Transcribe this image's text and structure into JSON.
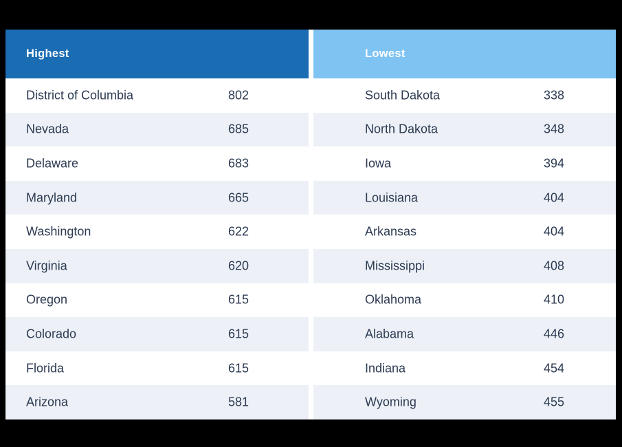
{
  "colors": {
    "canvas": "#000000",
    "table_background": "#FFFFFF",
    "header_highest": "#1A6CB3",
    "header_lowest": "#7FC3F3",
    "row_alternate": "#EDF1F7",
    "row_text": "#2C3A52",
    "header_text": "#FFFFFF"
  },
  "panels": [
    {
      "header": "Highest",
      "rows": [
        {
          "state": "District of Columbia",
          "value": "802"
        },
        {
          "state": "Nevada",
          "value": "685"
        },
        {
          "state": "Delaware",
          "value": "683"
        },
        {
          "state": "Maryland",
          "value": "665"
        },
        {
          "state": "Washington",
          "value": "622"
        },
        {
          "state": "Virginia",
          "value": "620"
        },
        {
          "state": "Oregon",
          "value": "615"
        },
        {
          "state": "Colorado",
          "value": "615"
        },
        {
          "state": "Florida",
          "value": "615"
        },
        {
          "state": "Arizona",
          "value": "581"
        }
      ]
    },
    {
      "header": "Lowest",
      "rows": [
        {
          "state": "South Dakota",
          "value": "338"
        },
        {
          "state": "North Dakota",
          "value": "348"
        },
        {
          "state": "Iowa",
          "value": "394"
        },
        {
          "state": "Louisiana",
          "value": "404"
        },
        {
          "state": "Arkansas",
          "value": "404"
        },
        {
          "state": "Mississippi",
          "value": "408"
        },
        {
          "state": "Oklahoma",
          "value": "410"
        },
        {
          "state": "Alabama",
          "value": "446"
        },
        {
          "state": "Indiana",
          "value": "454"
        },
        {
          "state": "Wyoming",
          "value": "455"
        }
      ]
    }
  ],
  "chart_data": {
    "type": "table",
    "columns": [
      "Highest",
      "Lowest"
    ],
    "highest": [
      {
        "state": "District of Columbia",
        "value": 802
      },
      {
        "state": "Nevada",
        "value": 685
      },
      {
        "state": "Delaware",
        "value": 683
      },
      {
        "state": "Maryland",
        "value": 665
      },
      {
        "state": "Washington",
        "value": 622
      },
      {
        "state": "Virginia",
        "value": 620
      },
      {
        "state": "Oregon",
        "value": 615
      },
      {
        "state": "Colorado",
        "value": 615
      },
      {
        "state": "Florida",
        "value": 615
      },
      {
        "state": "Arizona",
        "value": 581
      }
    ],
    "lowest": [
      {
        "state": "South Dakota",
        "value": 338
      },
      {
        "state": "North Dakota",
        "value": 348
      },
      {
        "state": "Iowa",
        "value": 394
      },
      {
        "state": "Louisiana",
        "value": 404
      },
      {
        "state": "Arkansas",
        "value": 404
      },
      {
        "state": "Mississippi",
        "value": 408
      },
      {
        "state": "Oklahoma",
        "value": 410
      },
      {
        "state": "Alabama",
        "value": 446
      },
      {
        "state": "Indiana",
        "value": 454
      },
      {
        "state": "Wyoming",
        "value": 455
      }
    ],
    "layout": {
      "row_striping": true,
      "header_row": true
    }
  }
}
